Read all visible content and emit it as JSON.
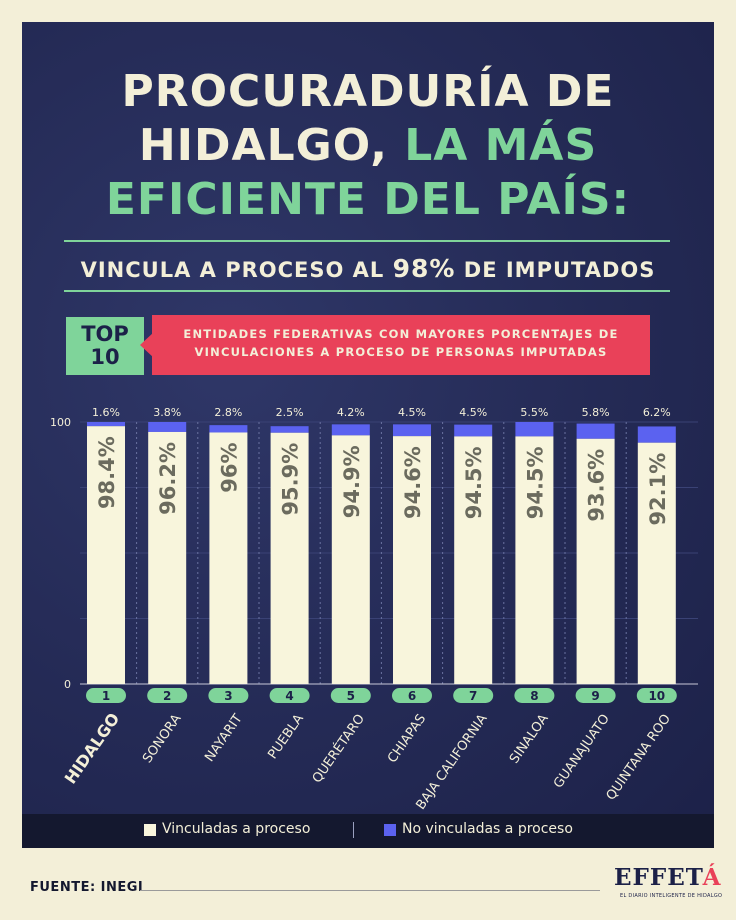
{
  "headline": {
    "line1": "PROCURADURÍA DE",
    "line2_a": "HIDALGO,",
    "line2_b": "LA MÁS",
    "line3": "EFICIENTE DEL PAÍS:"
  },
  "subtitle": {
    "before": "VINCULA A PROCESO AL",
    "value": "98%",
    "after": "DE IMPUTADOS"
  },
  "badge": {
    "line1": "TOP",
    "line2": "10"
  },
  "banner": {
    "line1": "ENTIDADES FEDERATIVAS CON MAYORES PORCENTAJES DE",
    "line2": "VINCULACIONES A PROCESO DE PERSONAS IMPUTADAS"
  },
  "chart_data": {
    "type": "bar",
    "stacked": true,
    "orientation": "vertical",
    "categories": [
      "HIDALGO",
      "SONORA",
      "NAYARIT",
      "PUEBLA",
      "QUERÉTARO",
      "CHIAPAS",
      "BAJA CALIFORNIA",
      "SINALOA",
      "GUANAJUATO",
      "QUINTANA ROO"
    ],
    "ranks": [
      "1",
      "2",
      "3",
      "4",
      "5",
      "6",
      "7",
      "8",
      "9",
      "10"
    ],
    "series": [
      {
        "name": "Vinculadas a proceso",
        "values": [
          98.4,
          96.2,
          96,
          95.9,
          94.9,
          94.6,
          94.5,
          94.5,
          93.6,
          92.1
        ],
        "labels": [
          "98.4%",
          "96.2%",
          "96%",
          "95.9%",
          "94.9%",
          "94.6%",
          "94.5%",
          "94.5%",
          "93.6%",
          "92.1%"
        ],
        "color": "#f8f5dc"
      },
      {
        "name": "No vinculadas a proceso",
        "values": [
          1.6,
          3.8,
          2.8,
          2.5,
          4.2,
          4.5,
          4.5,
          5.5,
          5.8,
          6.2
        ],
        "labels": [
          "1.6%",
          "3.8%",
          "2.8%",
          "2.5%",
          "4.2%",
          "4.5%",
          "4.5%",
          "5.5%",
          "5.8%",
          "6.2%"
        ],
        "color": "#5b62f0"
      }
    ],
    "ylim": [
      0,
      100
    ],
    "y_ticks": [
      "0",
      "100"
    ],
    "highlight_category": "HIDALGO",
    "legend": "bottom",
    "grid": true
  },
  "source": "FUENTE: INEGI",
  "logo": {
    "main": "EFFET",
    "accent": "Á",
    "tagline": "EL DIARIO INTELIGENTE DE HIDALGO"
  },
  "colors": {
    "background": "#f3efd8",
    "panel": "#242a55",
    "green": "#7fd49a",
    "red": "#e94159",
    "cream": "#f3efd8"
  }
}
